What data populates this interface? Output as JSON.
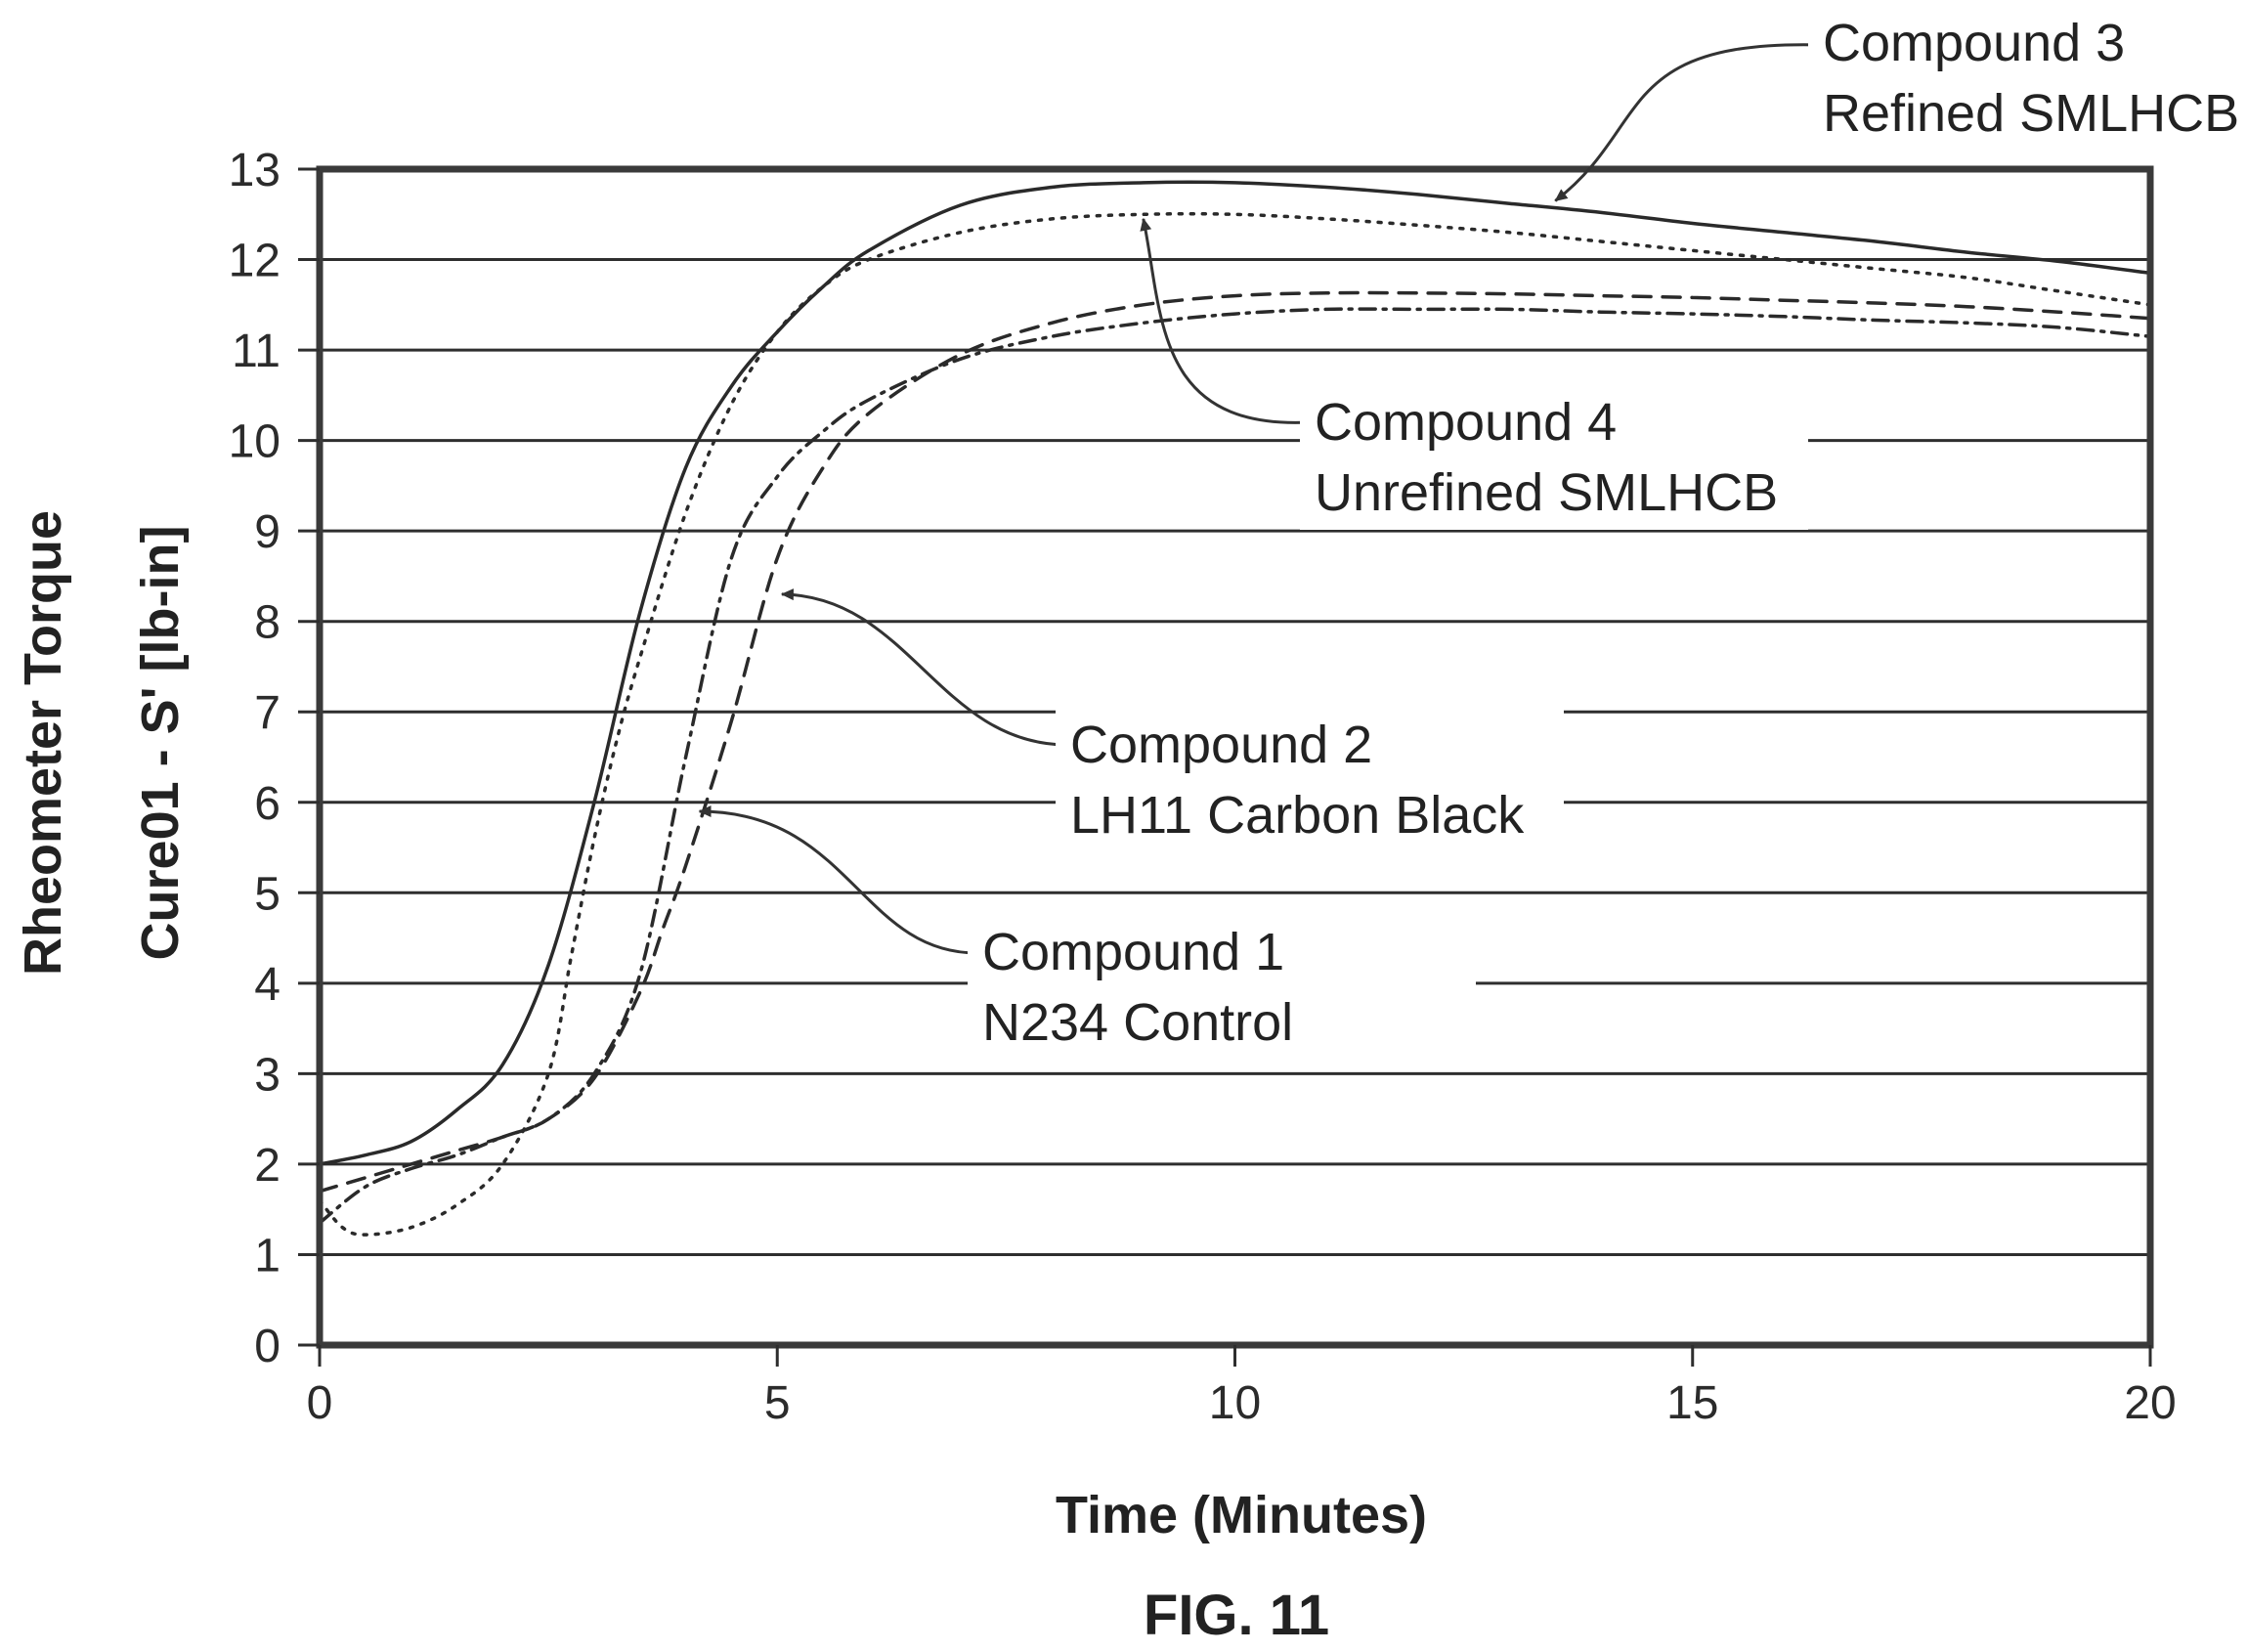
{
  "figure_label": "FIG. 11",
  "chart_data": {
    "type": "line",
    "title": "",
    "xlabel": "Time (Minutes)",
    "ylabel_line1": "Rheometer Torque",
    "ylabel_line2": "Cure01 - S' [lb-in]",
    "xlim": [
      0,
      20
    ],
    "ylim": [
      0,
      13
    ],
    "x_ticks": [
      "0",
      "5",
      "10",
      "15",
      "20"
    ],
    "y_ticks": [
      "0",
      "1",
      "2",
      "3",
      "4",
      "5",
      "6",
      "7",
      "8",
      "9",
      "10",
      "11",
      "12",
      "13"
    ],
    "grid": true,
    "series": [
      {
        "line_style": "solid",
        "x": [
          0,
          0.5,
          1,
          1.5,
          2,
          2.5,
          3,
          3.5,
          4,
          4.5,
          5,
          5.5,
          6,
          7,
          8,
          9,
          10,
          11,
          12,
          13,
          14,
          15,
          16,
          17,
          18,
          19,
          20
        ],
        "y": [
          2.0,
          2.1,
          2.25,
          2.6,
          3.1,
          4.2,
          6.0,
          8.1,
          9.7,
          10.6,
          11.2,
          11.7,
          12.1,
          12.6,
          12.8,
          12.85,
          12.85,
          12.8,
          12.72,
          12.62,
          12.52,
          12.4,
          12.3,
          12.2,
          12.08,
          11.98,
          11.85
        ]
      },
      {
        "line_style": "dotted",
        "x": [
          0,
          0.25,
          0.5,
          1,
          1.5,
          2,
          2.5,
          2.75,
          3,
          3.25,
          3.5,
          4,
          4.5,
          5,
          5.5,
          6,
          7,
          8,
          9,
          10,
          11,
          12,
          13,
          14,
          15,
          16,
          17,
          18,
          19,
          20
        ],
        "y": [
          1.6,
          1.3,
          1.22,
          1.3,
          1.55,
          2.0,
          3.0,
          4.3,
          5.6,
          6.7,
          7.6,
          9.2,
          10.4,
          11.2,
          11.7,
          12.0,
          12.3,
          12.45,
          12.5,
          12.5,
          12.45,
          12.38,
          12.3,
          12.2,
          12.1,
          12.0,
          11.9,
          11.8,
          11.65,
          11.5
        ]
      },
      {
        "line_style": "dash-dot",
        "x": [
          0,
          0.5,
          1,
          1.5,
          2,
          2.5,
          3,
          3.5,
          4,
          4.5,
          5,
          5.5,
          6,
          7,
          8,
          9,
          10,
          11,
          12,
          13,
          14,
          15,
          16,
          17,
          18,
          19,
          20
        ],
        "y": [
          1.35,
          1.75,
          1.95,
          2.1,
          2.3,
          2.5,
          3.0,
          4.1,
          6.5,
          8.7,
          9.6,
          10.1,
          10.45,
          10.9,
          11.15,
          11.3,
          11.4,
          11.45,
          11.45,
          11.45,
          11.42,
          11.4,
          11.37,
          11.33,
          11.3,
          11.25,
          11.15
        ]
      },
      {
        "line_style": "dashed",
        "x": [
          0,
          0.5,
          1,
          1.5,
          2,
          2.5,
          3,
          3.5,
          3.75,
          4,
          4.5,
          5,
          5.5,
          6,
          7,
          8,
          9,
          10,
          11,
          12,
          13,
          14,
          15,
          16,
          17,
          18,
          19,
          20
        ],
        "y": [
          1.7,
          1.85,
          2.0,
          2.15,
          2.3,
          2.5,
          2.95,
          3.9,
          4.6,
          5.3,
          6.9,
          8.7,
          9.7,
          10.3,
          10.95,
          11.3,
          11.5,
          11.6,
          11.63,
          11.63,
          11.62,
          11.6,
          11.58,
          11.55,
          11.52,
          11.48,
          11.42,
          11.35
        ]
      }
    ],
    "annotations": [
      {
        "line1": "Compound 3",
        "line2": "Refined SMLHCB",
        "arrow_to": [
          13.5,
          12.65
        ]
      },
      {
        "line1": "Compound 4",
        "line2": "Unrefined SMLHCB",
        "arrow_to": [
          9.0,
          12.45
        ]
      },
      {
        "line1": "Compound 2",
        "line2": "LH11 Carbon Black",
        "arrow_to": [
          5.05,
          8.3
        ]
      },
      {
        "line1": "Compound 1",
        "line2": "N234 Control",
        "arrow_to": [
          4.15,
          5.9
        ]
      }
    ]
  }
}
